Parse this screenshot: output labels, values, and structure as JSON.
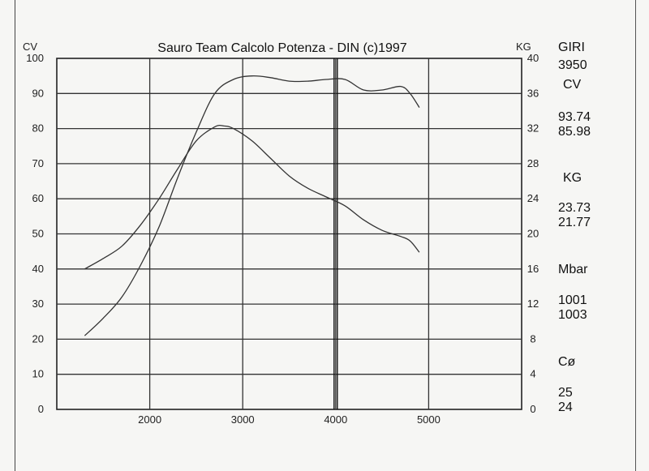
{
  "chart_data": {
    "type": "line",
    "title": "Sauro Team Calcolo Potenza - DIN  (c)1997",
    "left_axis": {
      "label": "CV",
      "ylim": [
        0,
        100
      ],
      "ticks": [
        "0",
        "10",
        "20",
        "30",
        "40",
        "50",
        "60",
        "70",
        "80",
        "90",
        "100"
      ]
    },
    "right_axis": {
      "label": "KG",
      "ylim": [
        0,
        40
      ],
      "ticks": [
        "0",
        "4",
        "8",
        "12",
        "16",
        "20",
        "24",
        "28",
        "32",
        "36",
        "40"
      ]
    },
    "x_axis": {
      "xlim": [
        1000,
        6000
      ],
      "ticks": [
        "2000",
        "3000",
        "4000",
        "5000"
      ],
      "tick_values": [
        2000,
        3000,
        4000,
        5000
      ]
    },
    "marker_x": 4000,
    "series": [
      {
        "axis": "left",
        "color": "#333333",
        "x": [
          1300,
          1500,
          1700,
          1900,
          2100,
          2300,
          2500,
          2700,
          2900,
          3100,
          3300,
          3500,
          3700,
          3900,
          4100,
          4300,
          4500,
          4700,
          4800,
          4900
        ],
        "y": [
          21,
          26,
          32,
          41,
          52,
          66,
          79,
          90,
          94,
          95,
          94.5,
          93.5,
          93.5,
          94,
          94,
          91,
          91,
          92,
          90,
          86
        ]
      },
      {
        "axis": "right",
        "color": "#333333",
        "x": [
          1300,
          1500,
          1700,
          1900,
          2100,
          2300,
          2500,
          2700,
          2800,
          2900,
          3100,
          3300,
          3500,
          3700,
          3900,
          4100,
          4300,
          4500,
          4700,
          4800,
          4900
        ],
        "y": [
          16,
          17.2,
          18.6,
          21,
          24,
          27.4,
          30.6,
          32.2,
          32.3,
          32,
          30.6,
          28.6,
          26.6,
          25.2,
          24.2,
          23.2,
          21.6,
          20.4,
          19.7,
          19.2,
          17.9
        ]
      }
    ]
  },
  "side_panel": {
    "giri_label": "GIRI",
    "giri_value": "3950",
    "cv_label": "CV",
    "cv_value_1": "93.74",
    "cv_value_2": "85.98",
    "kg_label": "KG",
    "kg_value_1": "23.73",
    "kg_value_2": "21.77",
    "mbar_label": "Mbar",
    "mbar_value_1": "1001",
    "mbar_value_2": "1003",
    "temp_label": "Cø",
    "temp_value_1": "25",
    "temp_value_2": "24"
  }
}
